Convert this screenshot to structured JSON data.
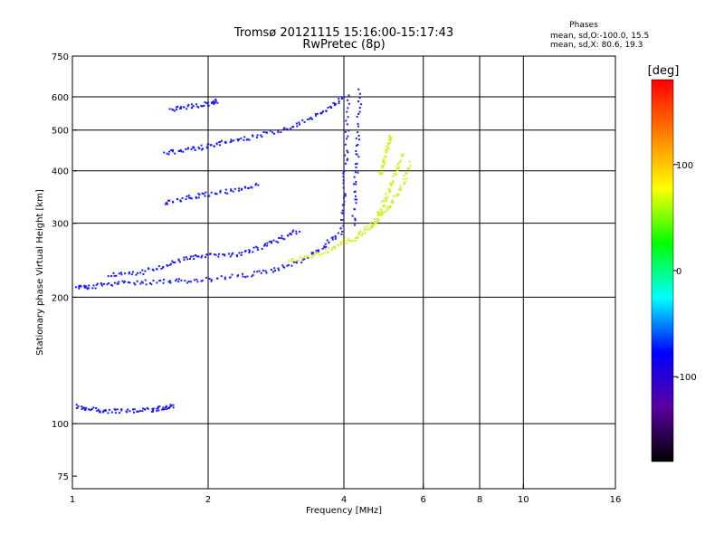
{
  "chart_data": {
    "type": "scatter",
    "title": "Tromsø 20121115 15:16:00-15:17:43",
    "subtitle": "RwPretec (8p)",
    "xlabel": "Frequency [MHz]",
    "ylabel": "Stationary phase Virtual Height [km]",
    "xscale": "log",
    "yscale": "log",
    "xlim": [
      1,
      16
    ],
    "ylim": [
      70,
      750
    ],
    "x_ticks": [
      "1",
      "2",
      "4",
      "6",
      "8",
      "10",
      "16"
    ],
    "y_ticks": [
      "75",
      "100",
      "200",
      "300",
      "400",
      "500",
      "600",
      "750"
    ],
    "grid_x": [
      2,
      4,
      6,
      8,
      10
    ],
    "grid_y": [
      100,
      200,
      300,
      400,
      500,
      600
    ],
    "stats_title": "Phases",
    "stats_lines": [
      "mean, sd,O:-100.0, 15.5",
      "mean, sd,X:  80.6, 19.3"
    ],
    "colorbar": {
      "label": "[deg]",
      "range": [
        -180,
        180
      ],
      "ticks": [
        "100",
        "0",
        "-100"
      ],
      "colors": [
        "#000000",
        "#5a00a0",
        "#0000ff",
        "#00ffff",
        "#00ff00",
        "#ffff00",
        "#ff8000",
        "#ff0000"
      ]
    },
    "series": [
      {
        "name": "O",
        "mean_phase": -100.0,
        "color": "#1a1aff",
        "traces": [
          {
            "x": [
              1.02,
              1.1,
              1.2,
              1.35,
              1.5,
              1.6,
              1.68
            ],
            "y": [
              110,
              108,
              107,
              107,
              108,
              109,
              110
            ]
          },
          {
            "x": [
              1.02,
              1.1,
              1.25,
              1.45,
              1.7,
              2.0,
              2.4,
              2.8,
              3.2,
              3.6,
              3.9
            ],
            "y": [
              210,
              212,
              216,
              217,
              218,
              220,
              225,
              232,
              245,
              262,
              285
            ]
          },
          {
            "x": [
              1.2,
              1.4,
              1.6,
              1.8,
              2.0,
              2.3,
              2.6,
              2.9,
              3.2
            ],
            "y": [
              225,
              228,
              238,
              248,
              252,
              252,
              262,
              275,
              290
            ]
          },
          {
            "x": [
              1.6,
              1.8,
              2.0,
              2.3,
              2.6
            ],
            "y": [
              335,
              345,
              352,
              360,
              372
            ]
          },
          {
            "x": [
              1.6,
              1.8,
              2.0,
              2.2,
              2.5,
              2.9,
              3.3,
              3.7,
              4.0
            ],
            "y": [
              440,
              448,
              458,
              468,
              480,
              500,
              525,
              560,
              600
            ]
          },
          {
            "x": [
              1.65,
              1.8,
              2.0,
              2.1
            ],
            "y": [
              560,
              568,
              578,
              585
            ]
          },
          {
            "x": [
              3.95,
              4.0,
              4.05,
              4.1
            ],
            "y": [
              280,
              350,
              450,
              620
            ]
          },
          {
            "x": [
              4.2,
              4.25,
              4.3,
              4.35
            ],
            "y": [
              300,
              380,
              480,
              640
            ]
          }
        ]
      },
      {
        "name": "X",
        "mean_phase": 80.6,
        "color": "#d0f020",
        "traces": [
          {
            "x": [
              3.0,
              3.4,
              3.8,
              4.2,
              4.5,
              4.8,
              5.1,
              5.4,
              5.6
            ],
            "y": [
              242,
              250,
              262,
              275,
              290,
              310,
              335,
              370,
              420
            ]
          },
          {
            "x": [
              4.6,
              4.8,
              5.0,
              5.2,
              5.4
            ],
            "y": [
              290,
              320,
              350,
              390,
              440
            ]
          },
          {
            "x": [
              4.8,
              4.9,
              5.0,
              5.1
            ],
            "y": [
              390,
              420,
              460,
              490
            ]
          }
        ]
      }
    ]
  }
}
